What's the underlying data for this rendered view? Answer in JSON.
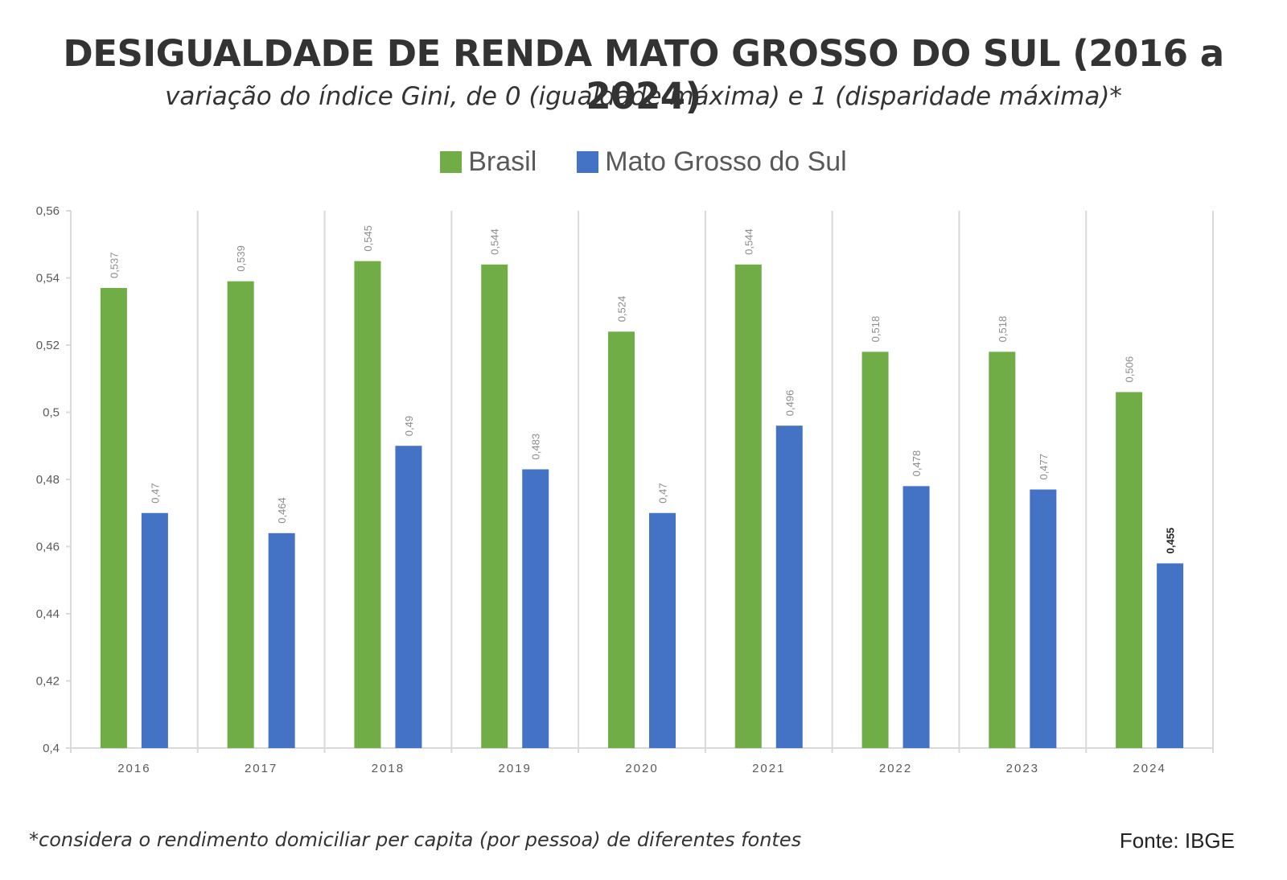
{
  "header": {
    "title": "DESIGUALDADE DE RENDA MATO GROSSO DO SUL (2016 a 2024)",
    "subtitle": "variação do índice Gini, de 0 (igualdade máxima) e 1 (disparidade máxima)*"
  },
  "footer": {
    "note": "*considera o rendimento domiciliar per capita (por pessoa) de diferentes fontes",
    "source": "Fonte: IBGE"
  },
  "colors": {
    "brasil": "#70AD47",
    "ms": "#4472C4",
    "grid": "#D9D9D9"
  },
  "chart_data": {
    "type": "bar",
    "categories": [
      "2016",
      "2017",
      "2018",
      "2019",
      "2020",
      "2021",
      "2022",
      "2023",
      "2024"
    ],
    "series": [
      {
        "name": "Brasil",
        "values": [
          0.537,
          0.539,
          0.545,
          0.544,
          0.524,
          0.544,
          0.518,
          0.518,
          0.506
        ],
        "labels": [
          "0,537",
          "0,539",
          "0,545",
          "0,544",
          "0,524",
          "0,544",
          "0,518",
          "0,518",
          "0,506"
        ]
      },
      {
        "name": "Mato Grosso do Sul",
        "values": [
          0.47,
          0.464,
          0.49,
          0.483,
          0.47,
          0.496,
          0.478,
          0.477,
          0.455
        ],
        "labels": [
          "0,47",
          "0,464",
          "0,49",
          "0,483",
          "0,47",
          "0,496",
          "0,478",
          "0,477",
          "0,455"
        ]
      }
    ],
    "ylim": [
      0.4,
      0.56
    ],
    "yticks": [
      0.4,
      0.42,
      0.44,
      0.46,
      0.48,
      0.5,
      0.52,
      0.54,
      0.56
    ],
    "ytick_labels": [
      "0,4",
      "0,42",
      "0,44",
      "0,46",
      "0,48",
      "0,5",
      "0,52",
      "0,54",
      "0,56"
    ],
    "legend_position": "top-center",
    "grid": "vertical category separators"
  }
}
